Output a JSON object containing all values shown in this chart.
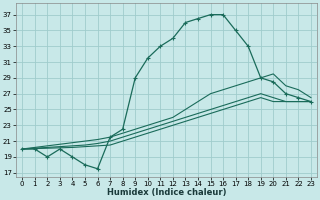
{
  "title": "",
  "xlabel": "Humidex (Indice chaleur)",
  "bg_color": "#c8e8e8",
  "grid_color": "#a0cccc",
  "line_color": "#1a6b5a",
  "xlim": [
    -0.5,
    23.5
  ],
  "ylim": [
    16.5,
    38.5
  ],
  "xticks": [
    0,
    1,
    2,
    3,
    4,
    5,
    6,
    7,
    8,
    9,
    10,
    11,
    12,
    13,
    14,
    15,
    16,
    17,
    18,
    19,
    20,
    21,
    22,
    23
  ],
  "yticks": [
    17,
    19,
    21,
    23,
    25,
    27,
    29,
    31,
    33,
    35,
    37
  ],
  "main_line": [
    20,
    20,
    19,
    20,
    19,
    18,
    17.5,
    21.5,
    22.5,
    29,
    31.5,
    33,
    34,
    36,
    36.5,
    37,
    37,
    35,
    33,
    29,
    28.5,
    27,
    26.5,
    26
  ],
  "line_upper": [
    20,
    20.2,
    20.4,
    20.6,
    20.8,
    21,
    21.2,
    21.5,
    22,
    22.5,
    23,
    23.5,
    24,
    25,
    26,
    27,
    27.5,
    28,
    28.5,
    29,
    29.5,
    28,
    27.5,
    26.5
  ],
  "line_mid": [
    20,
    20.1,
    20.2,
    20.3,
    20.4,
    20.5,
    20.7,
    21,
    21.5,
    22,
    22.5,
    23,
    23.5,
    24,
    24.5,
    25,
    25.5,
    26,
    26.5,
    27,
    26.5,
    26,
    26,
    26
  ],
  "line_lower": [
    20,
    20.05,
    20.1,
    20.15,
    20.2,
    20.3,
    20.4,
    20.5,
    21,
    21.5,
    22,
    22.5,
    23,
    23.5,
    24,
    24.5,
    25,
    25.5,
    26,
    26.5,
    26,
    26,
    26,
    26
  ]
}
